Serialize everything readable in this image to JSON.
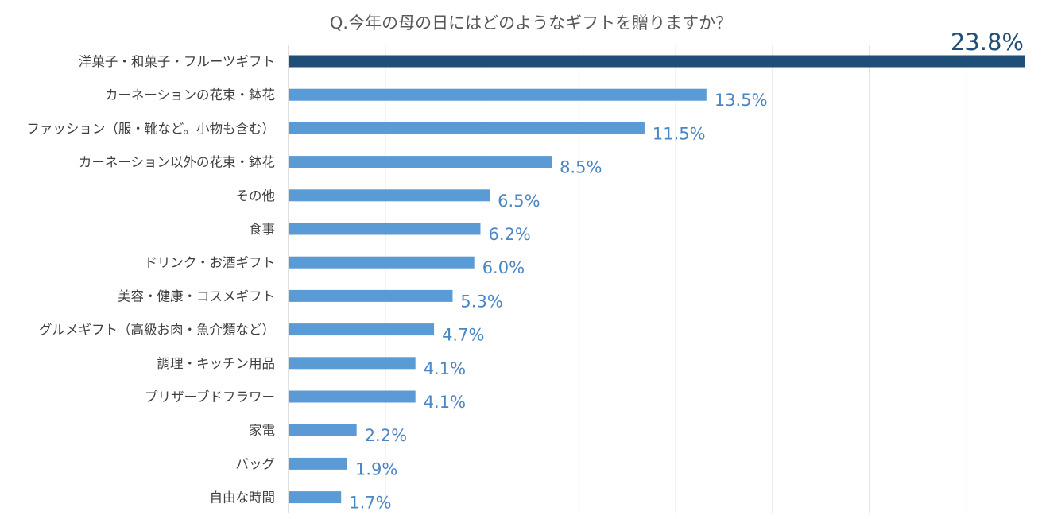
{
  "chart_data": {
    "type": "bar",
    "orientation": "horizontal",
    "title": "Q.今年の母の日にはどのようなギフトを贈りますか？",
    "xlabel": "",
    "ylabel": "",
    "xlim": [
      0,
      24
    ],
    "gridlines": true,
    "legend": "none",
    "categories": [
      "洋菓子・和菓子・フルーツギフト",
      "カーネーションの花束・鉢花",
      "ファッション（服・靴など。小物も含む）",
      "カーネーション以外の花束・鉢花",
      "その他",
      "食事",
      "ドリンク・お酒ギフト",
      "美容・健康・コスメギフト",
      "グルメギフト（高級お肉・魚介類など）",
      "調理・キッチン用品",
      "プリザーブドフラワー",
      "家電",
      "バッグ",
      "自由な時間"
    ],
    "values": [
      23.8,
      13.5,
      11.5,
      8.5,
      6.5,
      6.2,
      6.0,
      5.3,
      4.7,
      4.1,
      4.1,
      2.2,
      1.9,
      1.7
    ],
    "value_labels": [
      "23.8%",
      "13.5%",
      "11.5%",
      "8.5%",
      "6.5%",
      "6.2%",
      "6.0%",
      "5.3%",
      "4.7%",
      "4.1%",
      "4.1%",
      "2.2%",
      "1.9%",
      "1.7%"
    ],
    "colors": {
      "highlight_bar": "#1F4E79",
      "bar": "#5B9BD5",
      "highlight_label": "#1F4E79",
      "label": "#4A86C5",
      "gridline": "#D9D9D9",
      "axis": "#BFBFBF",
      "title": "#595959",
      "category_text": "#404040"
    }
  }
}
